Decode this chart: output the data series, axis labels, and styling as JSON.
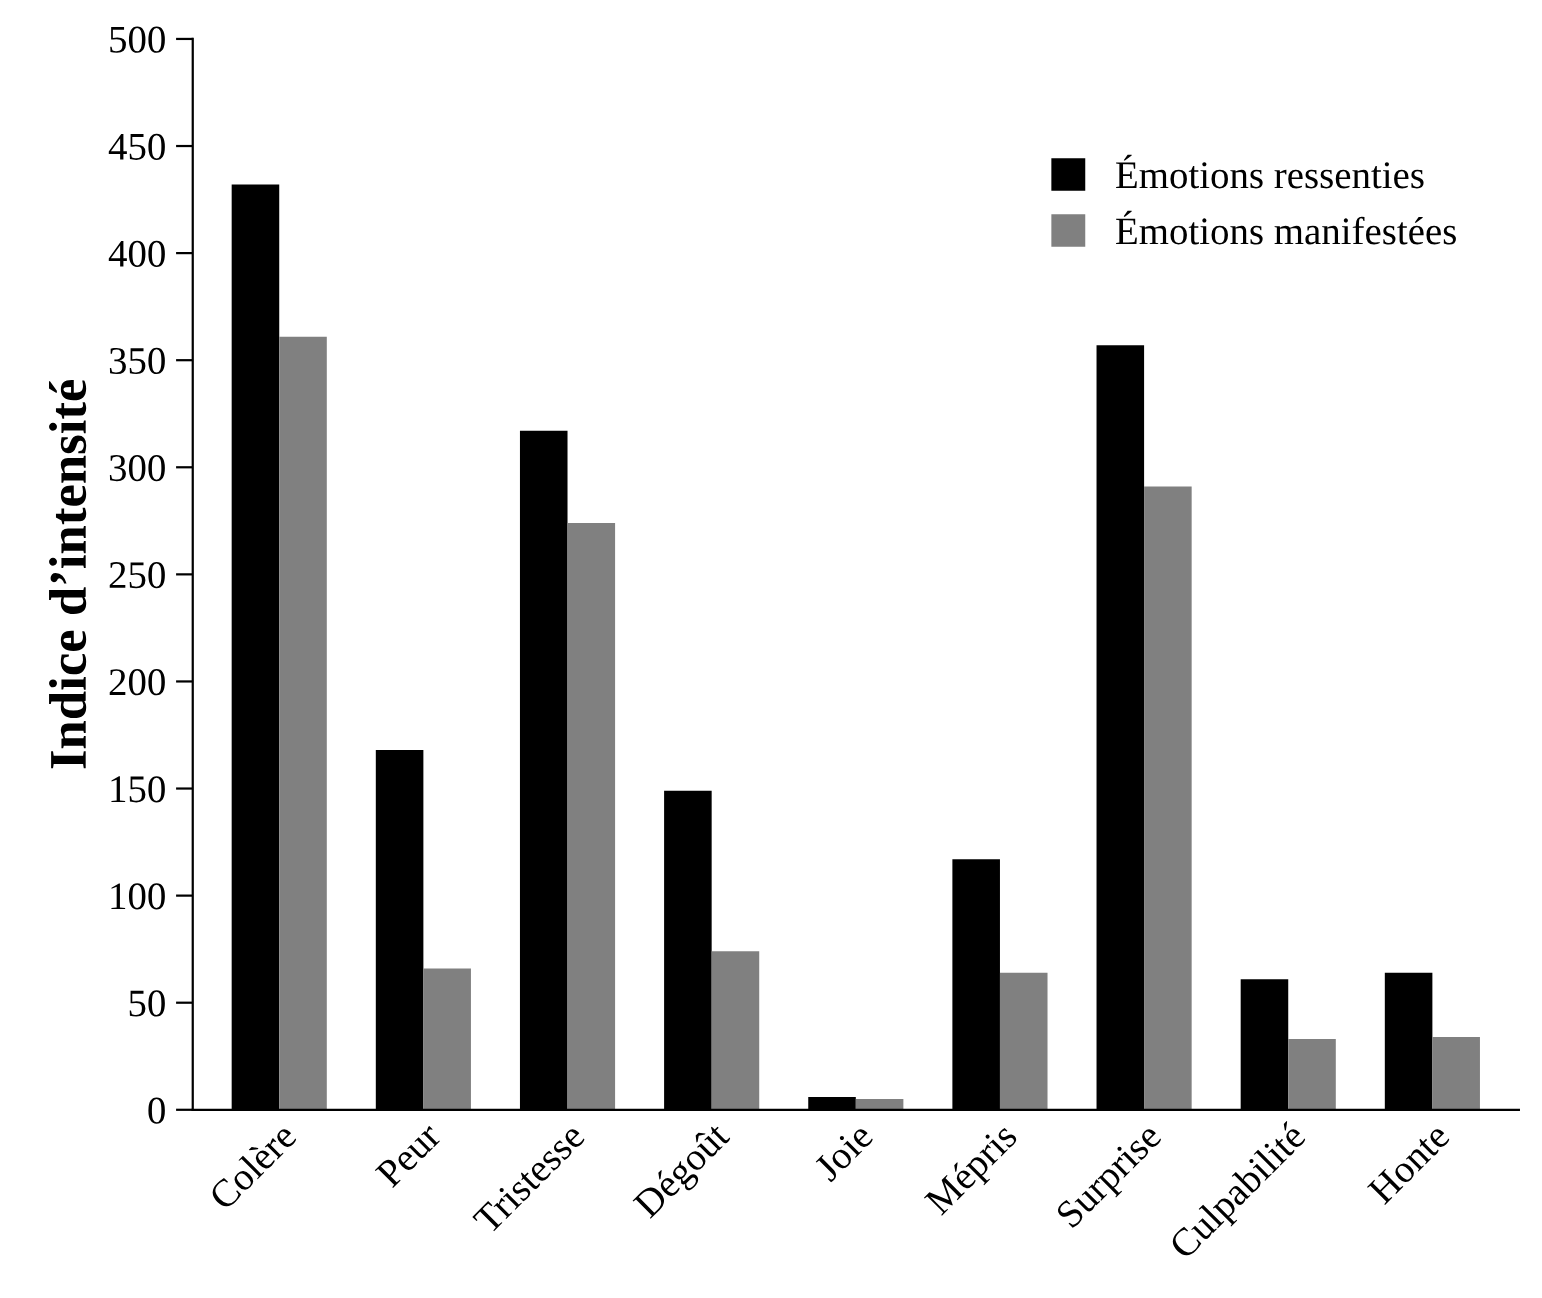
{
  "chart_data": {
    "type": "bar",
    "ylabel": "Indice d’intensité",
    "categories": [
      "Colère",
      "Peur",
      "Tristesse",
      "Dégoût",
      "Joie",
      "Mépris",
      "Surprise",
      "Culpabilité",
      "Honte"
    ],
    "series": [
      {
        "name": "Émotions ressenties",
        "color": "#000000",
        "values": [
          432,
          168,
          317,
          149,
          6,
          117,
          357,
          61,
          64
        ]
      },
      {
        "name": "Émotions manifestées",
        "color": "#808080",
        "values": [
          361,
          66,
          274,
          74,
          5,
          64,
          291,
          33,
          34
        ]
      }
    ],
    "ylim": [
      0,
      500
    ],
    "yticks": [
      0,
      50,
      100,
      150,
      200,
      250,
      300,
      350,
      400,
      450,
      500
    ],
    "grid": false,
    "legend": "top right"
  }
}
